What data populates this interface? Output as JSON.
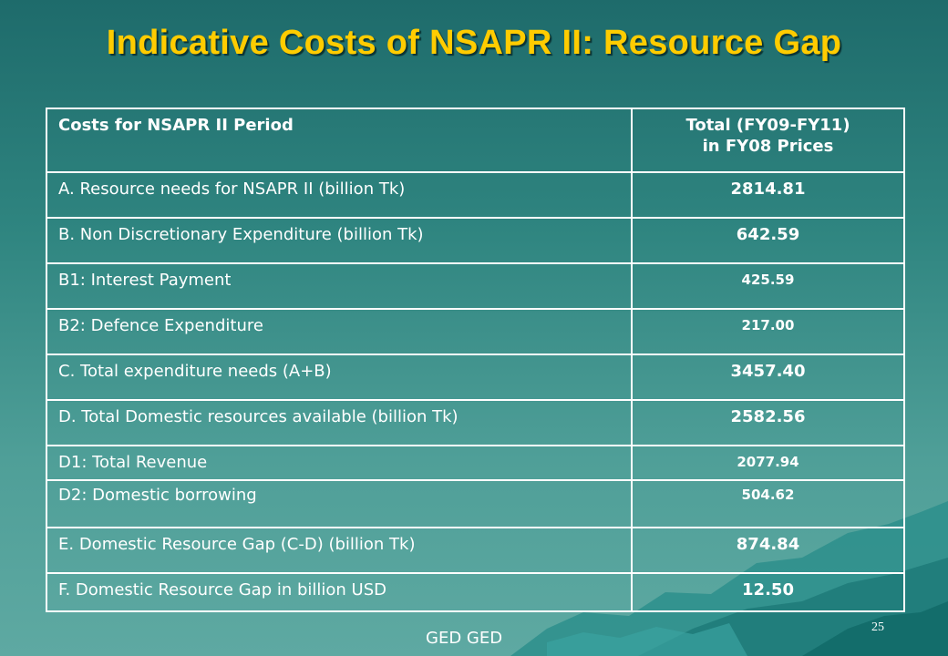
{
  "slide": {
    "title": "Indicative Costs of NSAPR II: Resource Gap",
    "footer": "GED GED",
    "page_number": "25"
  },
  "table": {
    "header": {
      "col1": "Costs for NSAPR II Period",
      "col2_line1": "Total (FY09-FY11)",
      "col2_line2": "in FY08 Prices"
    },
    "rows": [
      {
        "label": "A. Resource needs for NSAPR II (billion Tk)",
        "value": "2814.81"
      },
      {
        "label": "B. Non Discretionary Expenditure (billion Tk)",
        "value": "642.59"
      },
      {
        "label": "B1: Interest Payment",
        "value": "425.59"
      },
      {
        "label": "B2: Defence Expenditure",
        "value": "217.00"
      },
      {
        "label": "C.  Total expenditure needs (A+B)",
        "value": "3457.40"
      },
      {
        "label": "D.  Total Domestic resources available (billion Tk)",
        "value": "2582.56"
      },
      {
        "label": "D1: Total Revenue",
        "value": "2077.94"
      },
      {
        "label": "D2: Domestic borrowing",
        "value": "504.62"
      },
      {
        "label": "E. Domestic Resource Gap (C-D) (billion Tk)",
        "value": "874.84"
      },
      {
        "label": "F. Domestic Resource Gap in billion USD",
        "value": "12.50"
      }
    ]
  }
}
